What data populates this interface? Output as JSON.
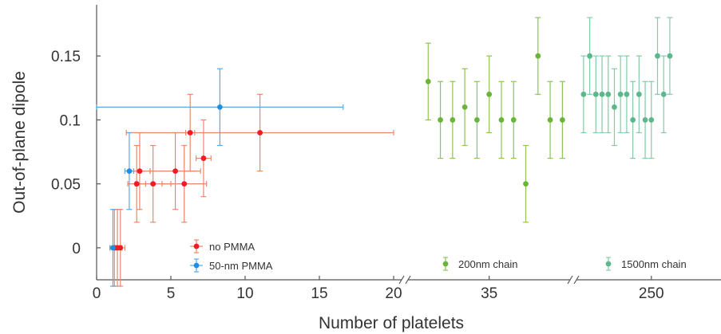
{
  "chart_data": {
    "type": "scatter",
    "xlabel": "Number of platelets",
    "ylabel": "Out-of-plane dipole",
    "ylim": [
      -0.025,
      0.19
    ],
    "grid": false,
    "legend": "bottom",
    "x_tick_labels": [
      "0",
      "5",
      "10",
      "15",
      "20",
      "35",
      "250"
    ],
    "y_tick_labels": [
      "0",
      "0.05",
      "0.1",
      "0.15"
    ],
    "y_ticks": [
      0,
      0.05,
      0.1,
      0.15
    ],
    "panels": [
      {
        "name": "linear",
        "x_range": [
          0,
          20
        ],
        "x_ticks": [
          0,
          5,
          10,
          15,
          20
        ]
      },
      {
        "name": "200nm",
        "x_range": [
          30.2,
          40.2
        ],
        "x_ticks": [
          35
        ]
      },
      {
        "name": "1500nm",
        "x_range": [
          238.5,
          261.3
        ],
        "x_ticks": [
          250
        ]
      }
    ],
    "series": [
      {
        "name": "no PMMA",
        "panel": "linear",
        "color": "#ee1c25",
        "error_color": "#e8896a",
        "points": [
          {
            "x": 1.2,
            "y": 0,
            "x_err": 0.3,
            "y_err": 0.03
          },
          {
            "x": 1.4,
            "y": 0,
            "x_err": 0.3,
            "y_err": 0.03
          },
          {
            "x": 1.6,
            "y": 0,
            "x_err": 0.3,
            "y_err": 0.03
          },
          {
            "x": 2.7,
            "y": 0.05,
            "x_err": 0.6,
            "y_err": 0.03
          },
          {
            "x": 2.9,
            "y": 0.06,
            "x_err": 0.7,
            "y_err": 0.03
          },
          {
            "x": 3.8,
            "y": 0.05,
            "x_err": 1.2,
            "y_err": 0.03
          },
          {
            "x": 5.3,
            "y": 0.06,
            "x_err": 1.7,
            "y_err": 0.03
          },
          {
            "x": 5.9,
            "y": 0.05,
            "x_err": 1.5,
            "y_err": 0.03
          },
          {
            "x": 6.3,
            "y": 0.09,
            "x_err": 0.3,
            "y_err": 0.03
          },
          {
            "x": 7.2,
            "y": 0.07,
            "x_err": 0.5,
            "y_err": 0.03
          },
          {
            "x": 11,
            "y": 0.09,
            "x_err": 9,
            "y_err": 0.03
          }
        ]
      },
      {
        "name": "50-nm PMMA",
        "panel": "linear",
        "color": "#1f8ee8",
        "error_color": "#5aa8ea",
        "points": [
          {
            "x": 1.1,
            "y": 0,
            "x_err": 0.2,
            "y_err": 0.03
          },
          {
            "x": 2.2,
            "y": 0.06,
            "x_err": 0.3,
            "y_err": 0.03
          },
          {
            "x": 8.3,
            "y": 0.11,
            "x_err": 8.3,
            "y_err": 0.03
          }
        ]
      },
      {
        "name": "200nm chain",
        "panel": "200nm",
        "color": "#6ab43a",
        "error_color": "#8cc45a",
        "points": [
          {
            "x": 31,
            "y": 0.13,
            "y_err": 0.03
          },
          {
            "x": 31.8,
            "y": 0.1,
            "y_err": 0.03
          },
          {
            "x": 32.6,
            "y": 0.1,
            "y_err": 0.03
          },
          {
            "x": 33.4,
            "y": 0.11,
            "y_err": 0.03
          },
          {
            "x": 34.2,
            "y": 0.1,
            "y_err": 0.03
          },
          {
            "x": 35,
            "y": 0.12,
            "y_err": 0.03
          },
          {
            "x": 35.8,
            "y": 0.1,
            "y_err": 0.03
          },
          {
            "x": 36.6,
            "y": 0.1,
            "y_err": 0.03
          },
          {
            "x": 37.4,
            "y": 0.05,
            "y_err": 0.03
          },
          {
            "x": 38.2,
            "y": 0.15,
            "y_err": 0.03
          },
          {
            "x": 39,
            "y": 0.1,
            "y_err": 0.03
          },
          {
            "x": 39.8,
            "y": 0.1,
            "y_err": 0.03
          }
        ]
      },
      {
        "name": "1500nm chain",
        "panel": "1500nm",
        "color": "#5cb88a",
        "error_color": "#86caa6",
        "points": [
          {
            "x": 239,
            "y": 0.12,
            "y_err": 0.03
          },
          {
            "x": 240,
            "y": 0.15,
            "y_err": 0.03
          },
          {
            "x": 241,
            "y": 0.12,
            "y_err": 0.03
          },
          {
            "x": 242,
            "y": 0.12,
            "y_err": 0.03
          },
          {
            "x": 243,
            "y": 0.12,
            "y_err": 0.03
          },
          {
            "x": 244,
            "y": 0.11,
            "y_err": 0.03
          },
          {
            "x": 245,
            "y": 0.12,
            "y_err": 0.03
          },
          {
            "x": 246,
            "y": 0.12,
            "y_err": 0.03
          },
          {
            "x": 247,
            "y": 0.1,
            "y_err": 0.03
          },
          {
            "x": 248,
            "y": 0.12,
            "y_err": 0.03
          },
          {
            "x": 249,
            "y": 0.1,
            "y_err": 0.03
          },
          {
            "x": 250,
            "y": 0.1,
            "y_err": 0.03
          },
          {
            "x": 251,
            "y": 0.15,
            "y_err": 0.03
          },
          {
            "x": 252,
            "y": 0.12,
            "y_err": 0.03
          },
          {
            "x": 253,
            "y": 0.15,
            "y_err": 0.03
          }
        ]
      }
    ]
  }
}
